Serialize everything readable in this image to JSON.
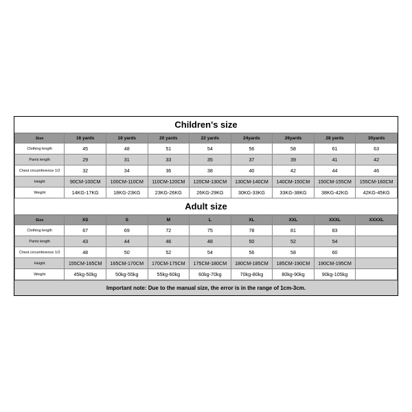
{
  "children": {
    "title": "Children's size",
    "header": [
      "Size",
      "16 yards",
      "18 yards",
      "20 yards",
      "22 yards",
      "24yards",
      "26yards",
      "28 yards",
      "30yards"
    ],
    "rows": [
      {
        "label": "Clothing length",
        "vals": [
          "45",
          "48",
          "51",
          "54",
          "56",
          "58",
          "61",
          "63"
        ],
        "shade": "light"
      },
      {
        "label": "Pants length",
        "vals": [
          "29",
          "31",
          "33",
          "35",
          "37",
          "39",
          "41",
          "42"
        ],
        "shade": "gray"
      },
      {
        "label": "Chest circumference 1/2",
        "vals": [
          "32",
          "34",
          "36",
          "38",
          "40",
          "42",
          "44",
          "46"
        ],
        "shade": "light"
      },
      {
        "label": "Height",
        "vals": [
          "90CM-100CM",
          "100CM-110CM",
          "110CM-120CM",
          "120CM-130CM",
          "130CM-140CM",
          "140CM-150CM",
          "150CM-155CM",
          "155CM-160CM"
        ],
        "shade": "gray"
      },
      {
        "label": "Weight",
        "vals": [
          "14KG-17KG",
          "18KG-23KG",
          "23KG-26KG",
          "26KG-29KG",
          "30KG-33KG",
          "33KG-38KG",
          "38KG-42KG",
          "42KG-45KG"
        ],
        "shade": "light"
      }
    ]
  },
  "adult": {
    "title": "Adult size",
    "header": [
      "Size",
      "XS",
      "S",
      "M",
      "L",
      "XL",
      "XXL",
      "XXXL",
      "XXXXL"
    ],
    "rows": [
      {
        "label": "Clothing length",
        "vals": [
          "67",
          "69",
          "72",
          "75",
          "78",
          "81",
          "83",
          ""
        ],
        "shade": "light"
      },
      {
        "label": "Pants length",
        "vals": [
          "43",
          "44",
          "46",
          "48",
          "50",
          "52",
          "54",
          ""
        ],
        "shade": "gray"
      },
      {
        "label": "Chest circumference 1/2",
        "vals": [
          "48",
          "50",
          "52",
          "54",
          "56",
          "58",
          "60",
          ""
        ],
        "shade": "light"
      },
      {
        "label": "Height",
        "vals": [
          "155CM-165CM",
          "165CM-170CM",
          "170CM-175CM",
          "175CM-180CM",
          "180CM-185CM",
          "185CM-190CM",
          "190CM-195CM",
          ""
        ],
        "shade": "gray"
      },
      {
        "label": "Weight",
        "vals": [
          "45kg-50kg",
          "50kg-55kg",
          "55kg-60kg",
          "60kg-70kg",
          "70kg-80kg",
          "80kg-90kg",
          "90kg-105kg",
          ""
        ],
        "shade": "light"
      }
    ]
  },
  "note": "Important note: Due to the manual size, the error is in the range of 1cm-3cm."
}
